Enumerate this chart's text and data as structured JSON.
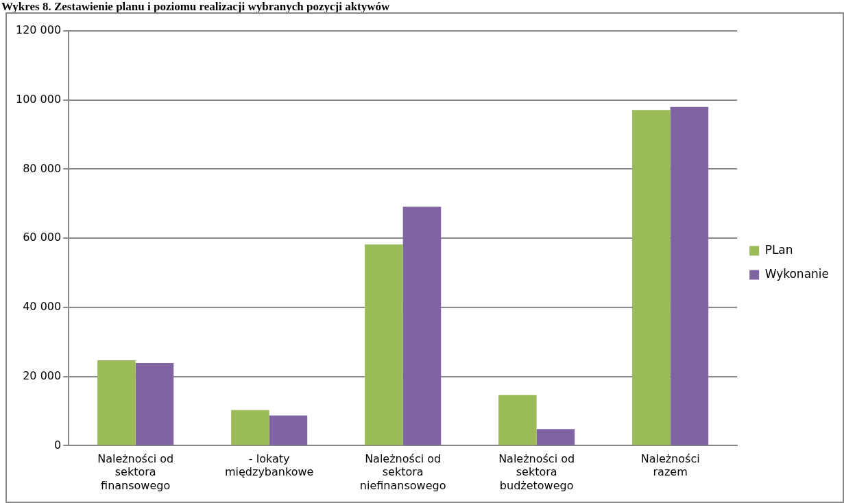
{
  "chart_data": {
    "type": "bar",
    "title": "Wykres 8. Zestawienie planu i poziomu realizacji wybranych pozycji aktywów",
    "categories": [
      "Należności od sektora finansowego",
      "- lokaty międzybankowe",
      "Należności od sektora niefinansowego",
      "Należności od sektora budżetowego",
      "Należności razem"
    ],
    "series": [
      {
        "name": "PLan",
        "color": "#9bbb59",
        "values": [
          24700,
          10300,
          58200,
          14600,
          97100
        ]
      },
      {
        "name": "Wykonanie",
        "color": "#8064a2",
        "values": [
          23900,
          8700,
          69100,
          4800,
          98000
        ]
      }
    ],
    "ylim": [
      0,
      120000
    ],
    "yticks": [
      {
        "value": 0,
        "label": "0"
      },
      {
        "value": 20000,
        "label": "20 000"
      },
      {
        "value": 40000,
        "label": "40 000"
      },
      {
        "value": 60000,
        "label": "60 000"
      },
      {
        "value": 80000,
        "label": "80 000"
      },
      {
        "value": 100000,
        "label": "100 000"
      },
      {
        "value": 120000,
        "label": "120 000"
      }
    ],
    "grid": "y",
    "legend": "right"
  }
}
